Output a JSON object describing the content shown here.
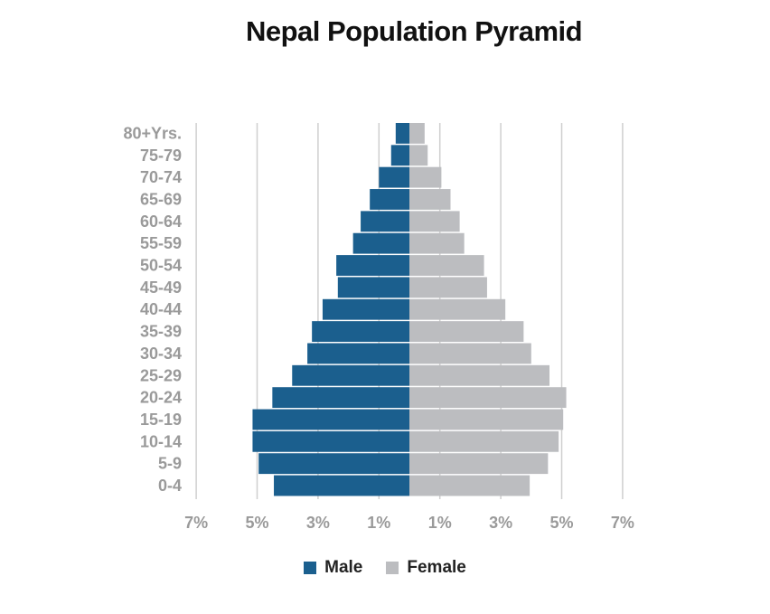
{
  "chart_data": {
    "type": "bar",
    "orientation": "horizontal-pyramid",
    "title": "Nepal Population Pyramid",
    "categories": [
      "80+Yrs.",
      "75-79",
      "70-74",
      "65-69",
      "60-64",
      "55-59",
      "50-54",
      "45-49",
      "40-44",
      "35-39",
      "30-34",
      "25-29",
      "20-24",
      "15-19",
      "10-14",
      "5-9",
      "0-4"
    ],
    "series": [
      {
        "name": "Male",
        "color": "#1b5f8e",
        "values": [
          0.45,
          0.6,
          1.0,
          1.3,
          1.6,
          1.85,
          2.4,
          2.35,
          2.85,
          3.2,
          3.35,
          3.85,
          4.5,
          5.15,
          5.15,
          4.95,
          4.45
        ]
      },
      {
        "name": "Female",
        "color": "#bcbdc0",
        "values": [
          0.5,
          0.6,
          1.05,
          1.35,
          1.65,
          1.8,
          2.45,
          2.55,
          3.15,
          3.75,
          4.0,
          4.6,
          5.15,
          5.05,
          4.9,
          4.55,
          3.95
        ]
      }
    ],
    "xlim": [
      -7,
      7
    ],
    "xticks": [
      "7%",
      "5%",
      "3%",
      "1%",
      "1%",
      "3%",
      "5%",
      "7%"
    ],
    "grid": true,
    "legend_position": "bottom"
  }
}
